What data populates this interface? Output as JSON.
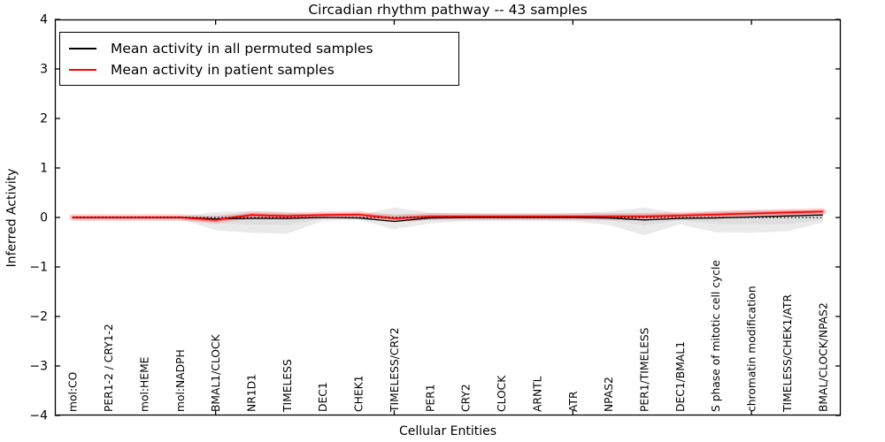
{
  "chart": {
    "title": "Circadian rhythm pathway -- 43 samples",
    "xlabel": "Cellular Entities",
    "ylabel": "Inferred Activity",
    "legend": [
      {
        "label": "Mean activity in all permuted samples",
        "color": "#000000"
      },
      {
        "label": "Mean activity in patient samples",
        "color": "#ff0000"
      }
    ]
  },
  "chart_data": {
    "type": "line",
    "title": "Circadian rhythm pathway -- 43 samples",
    "xlabel": "Cellular Entities",
    "ylabel": "Inferred Activity",
    "ylim": [
      -4,
      4
    ],
    "yticks": [
      -4,
      -3,
      -2,
      -1,
      0,
      1,
      2,
      3,
      4
    ],
    "xtick_indices": [
      4,
      9,
      14,
      19
    ],
    "grid": false,
    "legend_position": "upper left",
    "categories": [
      "mol:CO",
      "PER1-2 / CRY1-2",
      "mol:HEME",
      "mol:NADPH",
      "BMAL1/CLOCK",
      "NR1D1",
      "TIMELESS",
      "DEC1",
      "CHEK1",
      "TIMELESS/CRY2",
      "PER1",
      "CRY2",
      "CLOCK",
      "ARNTL",
      "ATR",
      "NPAS2",
      "PER1/TIMELESS",
      "DEC1/BMAL1",
      "S phase of mitotic cell cycle",
      "chromatin modification",
      "TIMELESS/CHEK1/ATR",
      "BMAL/CLOCK/NPAS2"
    ],
    "series": [
      {
        "name": "Mean activity in all permuted samples",
        "color": "#000000",
        "values": [
          0,
          0,
          0,
          0,
          -0.03,
          -0.02,
          -0.02,
          0,
          -0.01,
          -0.08,
          -0.01,
          0,
          0,
          0,
          0,
          -0.01,
          -0.05,
          -0.02,
          -0.01,
          0.01,
          0.03,
          0.05
        ]
      },
      {
        "name": "Mean activity in patient samples",
        "color": "#ff0000",
        "values": [
          0,
          0,
          0,
          0,
          -0.05,
          0.05,
          0.03,
          0.05,
          0.06,
          -0.02,
          0.02,
          0.02,
          0.02,
          0.02,
          0.02,
          0.02,
          0.02,
          0.04,
          0.06,
          0.08,
          0.1,
          0.12
        ]
      }
    ],
    "bands": [
      {
        "name": "permuted samples range (outer)",
        "color": "#eaeaea",
        "upper": [
          0.01,
          0.01,
          0.01,
          0.02,
          0.11,
          0.13,
          0.11,
          0.05,
          0.04,
          0.2,
          0.1,
          0.08,
          0.07,
          0.07,
          0.08,
          0.12,
          0.2,
          0.08,
          0.13,
          0.15,
          0.15,
          0.14
        ],
        "lower": [
          -0.01,
          -0.01,
          -0.01,
          -0.02,
          -0.26,
          -0.31,
          -0.33,
          -0.07,
          -0.05,
          -0.24,
          -0.12,
          -0.08,
          -0.07,
          -0.07,
          -0.08,
          -0.15,
          -0.36,
          -0.14,
          -0.3,
          -0.31,
          -0.28,
          -0.1
        ]
      },
      {
        "name": "permuted samples range (inner)",
        "color": "#dedede",
        "upper": [
          0,
          0,
          0,
          0.01,
          0.05,
          0.06,
          0.05,
          0.02,
          0.02,
          0.08,
          0.04,
          0.03,
          0.03,
          0.03,
          0.03,
          0.05,
          0.08,
          0.03,
          0.06,
          0.07,
          0.07,
          0.07
        ],
        "lower": [
          0,
          0,
          0,
          -0.01,
          -0.12,
          -0.14,
          -0.15,
          -0.03,
          -0.02,
          -0.1,
          -0.05,
          -0.03,
          -0.03,
          -0.03,
          -0.03,
          -0.06,
          -0.16,
          -0.06,
          -0.13,
          -0.14,
          -0.13,
          -0.05
        ]
      }
    ],
    "reference_line": {
      "y": 0,
      "color": "#000000",
      "style": "dotted"
    }
  }
}
